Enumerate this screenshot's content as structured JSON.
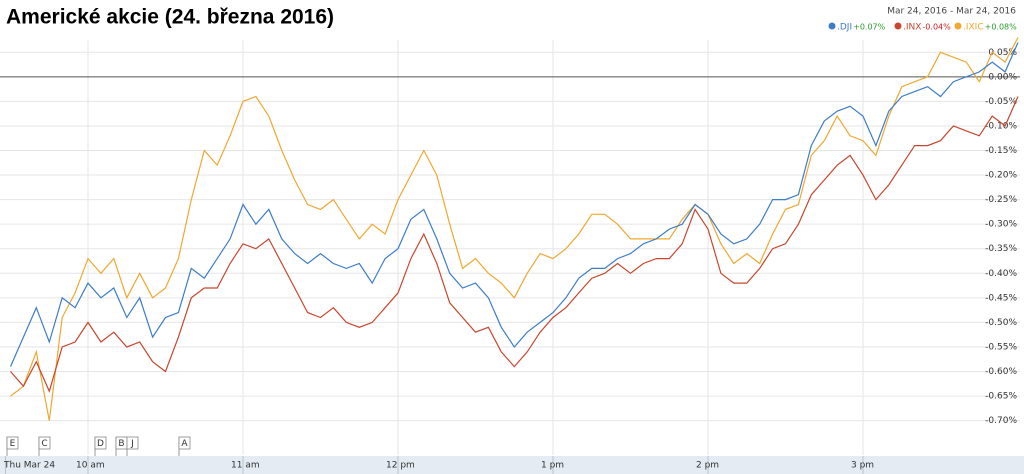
{
  "chart_data": {
    "type": "line",
    "title": "Americké akcie (24. března 2016)",
    "date_range": "Mar 24, 2016 - Mar 24, 2016",
    "categories": [
      "Thu Mar 24",
      null,
      null,
      null,
      null,
      null,
      "10 am",
      null,
      null,
      null,
      null,
      null,
      null,
      null,
      null,
      null,
      null,
      null,
      "11 am",
      null,
      null,
      null,
      null,
      null,
      null,
      null,
      null,
      null,
      null,
      null,
      "12 pm",
      null,
      null,
      null,
      null,
      null,
      null,
      null,
      null,
      null,
      null,
      null,
      "1 pm",
      null,
      null,
      null,
      null,
      null,
      null,
      null,
      null,
      null,
      null,
      null,
      "2 pm",
      null,
      null,
      null,
      null,
      null,
      null,
      null,
      null,
      null,
      null,
      null,
      "3 pm",
      null,
      null,
      null,
      null,
      null,
      null,
      null,
      null,
      null,
      null,
      null,
      null
    ],
    "series": [
      {
        "name": ".DJI",
        "color": "#3d7dc8",
        "change": 0.07,
        "change_label": "+0.07%",
        "values": [
          -0.59,
          -0.53,
          -0.47,
          -0.54,
          -0.45,
          -0.47,
          -0.42,
          -0.45,
          -0.43,
          -0.49,
          -0.45,
          -0.53,
          -0.49,
          -0.48,
          -0.39,
          -0.41,
          -0.37,
          -0.33,
          -0.26,
          -0.3,
          -0.27,
          -0.33,
          -0.36,
          -0.38,
          -0.36,
          -0.38,
          -0.39,
          -0.38,
          -0.42,
          -0.37,
          -0.35,
          -0.29,
          -0.27,
          -0.33,
          -0.4,
          -0.43,
          -0.42,
          -0.45,
          -0.51,
          -0.55,
          -0.52,
          -0.5,
          -0.48,
          -0.45,
          -0.41,
          -0.39,
          -0.39,
          -0.37,
          -0.36,
          -0.34,
          -0.33,
          -0.31,
          -0.3,
          -0.26,
          -0.28,
          -0.32,
          -0.34,
          -0.33,
          -0.3,
          -0.25,
          -0.25,
          -0.24,
          -0.14,
          -0.09,
          -0.07,
          -0.06,
          -0.08,
          -0.14,
          -0.07,
          -0.04,
          -0.03,
          -0.02,
          -0.04,
          -0.01,
          0.0,
          0.01,
          0.03,
          0.01,
          0.07
        ]
      },
      {
        "name": ".INX",
        "color": "#c8462d",
        "change": -0.04,
        "change_label": "-0.04%",
        "values": [
          -0.6,
          -0.63,
          -0.58,
          -0.64,
          -0.55,
          -0.54,
          -0.5,
          -0.54,
          -0.52,
          -0.55,
          -0.54,
          -0.58,
          -0.6,
          -0.53,
          -0.45,
          -0.43,
          -0.43,
          -0.38,
          -0.34,
          -0.35,
          -0.33,
          -0.38,
          -0.43,
          -0.48,
          -0.49,
          -0.47,
          -0.5,
          -0.51,
          -0.5,
          -0.47,
          -0.44,
          -0.37,
          -0.32,
          -0.38,
          -0.46,
          -0.49,
          -0.52,
          -0.51,
          -0.56,
          -0.59,
          -0.56,
          -0.52,
          -0.49,
          -0.47,
          -0.44,
          -0.41,
          -0.4,
          -0.38,
          -0.4,
          -0.38,
          -0.37,
          -0.37,
          -0.34,
          -0.27,
          -0.31,
          -0.4,
          -0.42,
          -0.42,
          -0.39,
          -0.35,
          -0.34,
          -0.3,
          -0.24,
          -0.21,
          -0.18,
          -0.16,
          -0.2,
          -0.25,
          -0.22,
          -0.18,
          -0.14,
          -0.14,
          -0.13,
          -0.1,
          -0.11,
          -0.12,
          -0.08,
          -0.1,
          -0.04
        ]
      },
      {
        "name": ".IXIC",
        "color": "#f0a830",
        "change": 0.08,
        "change_label": "+0.08%",
        "values": [
          -0.65,
          -0.63,
          -0.56,
          -0.7,
          -0.49,
          -0.44,
          -0.37,
          -0.4,
          -0.37,
          -0.45,
          -0.4,
          -0.45,
          -0.43,
          -0.37,
          -0.25,
          -0.15,
          -0.18,
          -0.12,
          -0.05,
          -0.04,
          -0.08,
          -0.15,
          -0.21,
          -0.26,
          -0.27,
          -0.25,
          -0.29,
          -0.33,
          -0.3,
          -0.32,
          -0.25,
          -0.2,
          -0.15,
          -0.2,
          -0.3,
          -0.39,
          -0.37,
          -0.4,
          -0.42,
          -0.45,
          -0.4,
          -0.36,
          -0.37,
          -0.35,
          -0.32,
          -0.28,
          -0.28,
          -0.3,
          -0.33,
          -0.33,
          -0.33,
          -0.33,
          -0.29,
          -0.26,
          -0.28,
          -0.34,
          -0.38,
          -0.36,
          -0.38,
          -0.32,
          -0.27,
          -0.26,
          -0.16,
          -0.13,
          -0.08,
          -0.12,
          -0.13,
          -0.16,
          -0.08,
          -0.02,
          -0.01,
          0.0,
          0.05,
          0.04,
          0.03,
          -0.01,
          0.05,
          0.03,
          0.08
        ]
      }
    ],
    "ylim": [
      -0.77,
      0.075
    ],
    "yticks": [
      {
        "value": 0.05,
        "label": "0.05%"
      },
      {
        "value": 0,
        "label": "0.00%"
      },
      {
        "value": -0.05,
        "label": "-0.05%"
      },
      {
        "value": -0.1,
        "label": "-0.10%"
      },
      {
        "value": -0.15,
        "label": "-0.15%"
      },
      {
        "value": -0.2,
        "label": "-0.20%"
      },
      {
        "value": -0.25,
        "label": "-0.25%"
      },
      {
        "value": -0.3,
        "label": "-0.30%"
      },
      {
        "value": -0.35,
        "label": "-0.35%"
      },
      {
        "value": -0.4,
        "label": "-0.40%"
      },
      {
        "value": -0.45,
        "label": "-0.45%"
      },
      {
        "value": -0.5,
        "label": "-0.50%"
      },
      {
        "value": -0.55,
        "label": "-0.55%"
      },
      {
        "value": -0.6,
        "label": "-0.60%"
      },
      {
        "value": -0.65,
        "label": "-0.65%"
      },
      {
        "value": -0.7,
        "label": "-0.70%"
      }
    ],
    "grid": true,
    "event_flags": [
      "E",
      "C",
      "D",
      "B",
      "J",
      "A"
    ]
  }
}
